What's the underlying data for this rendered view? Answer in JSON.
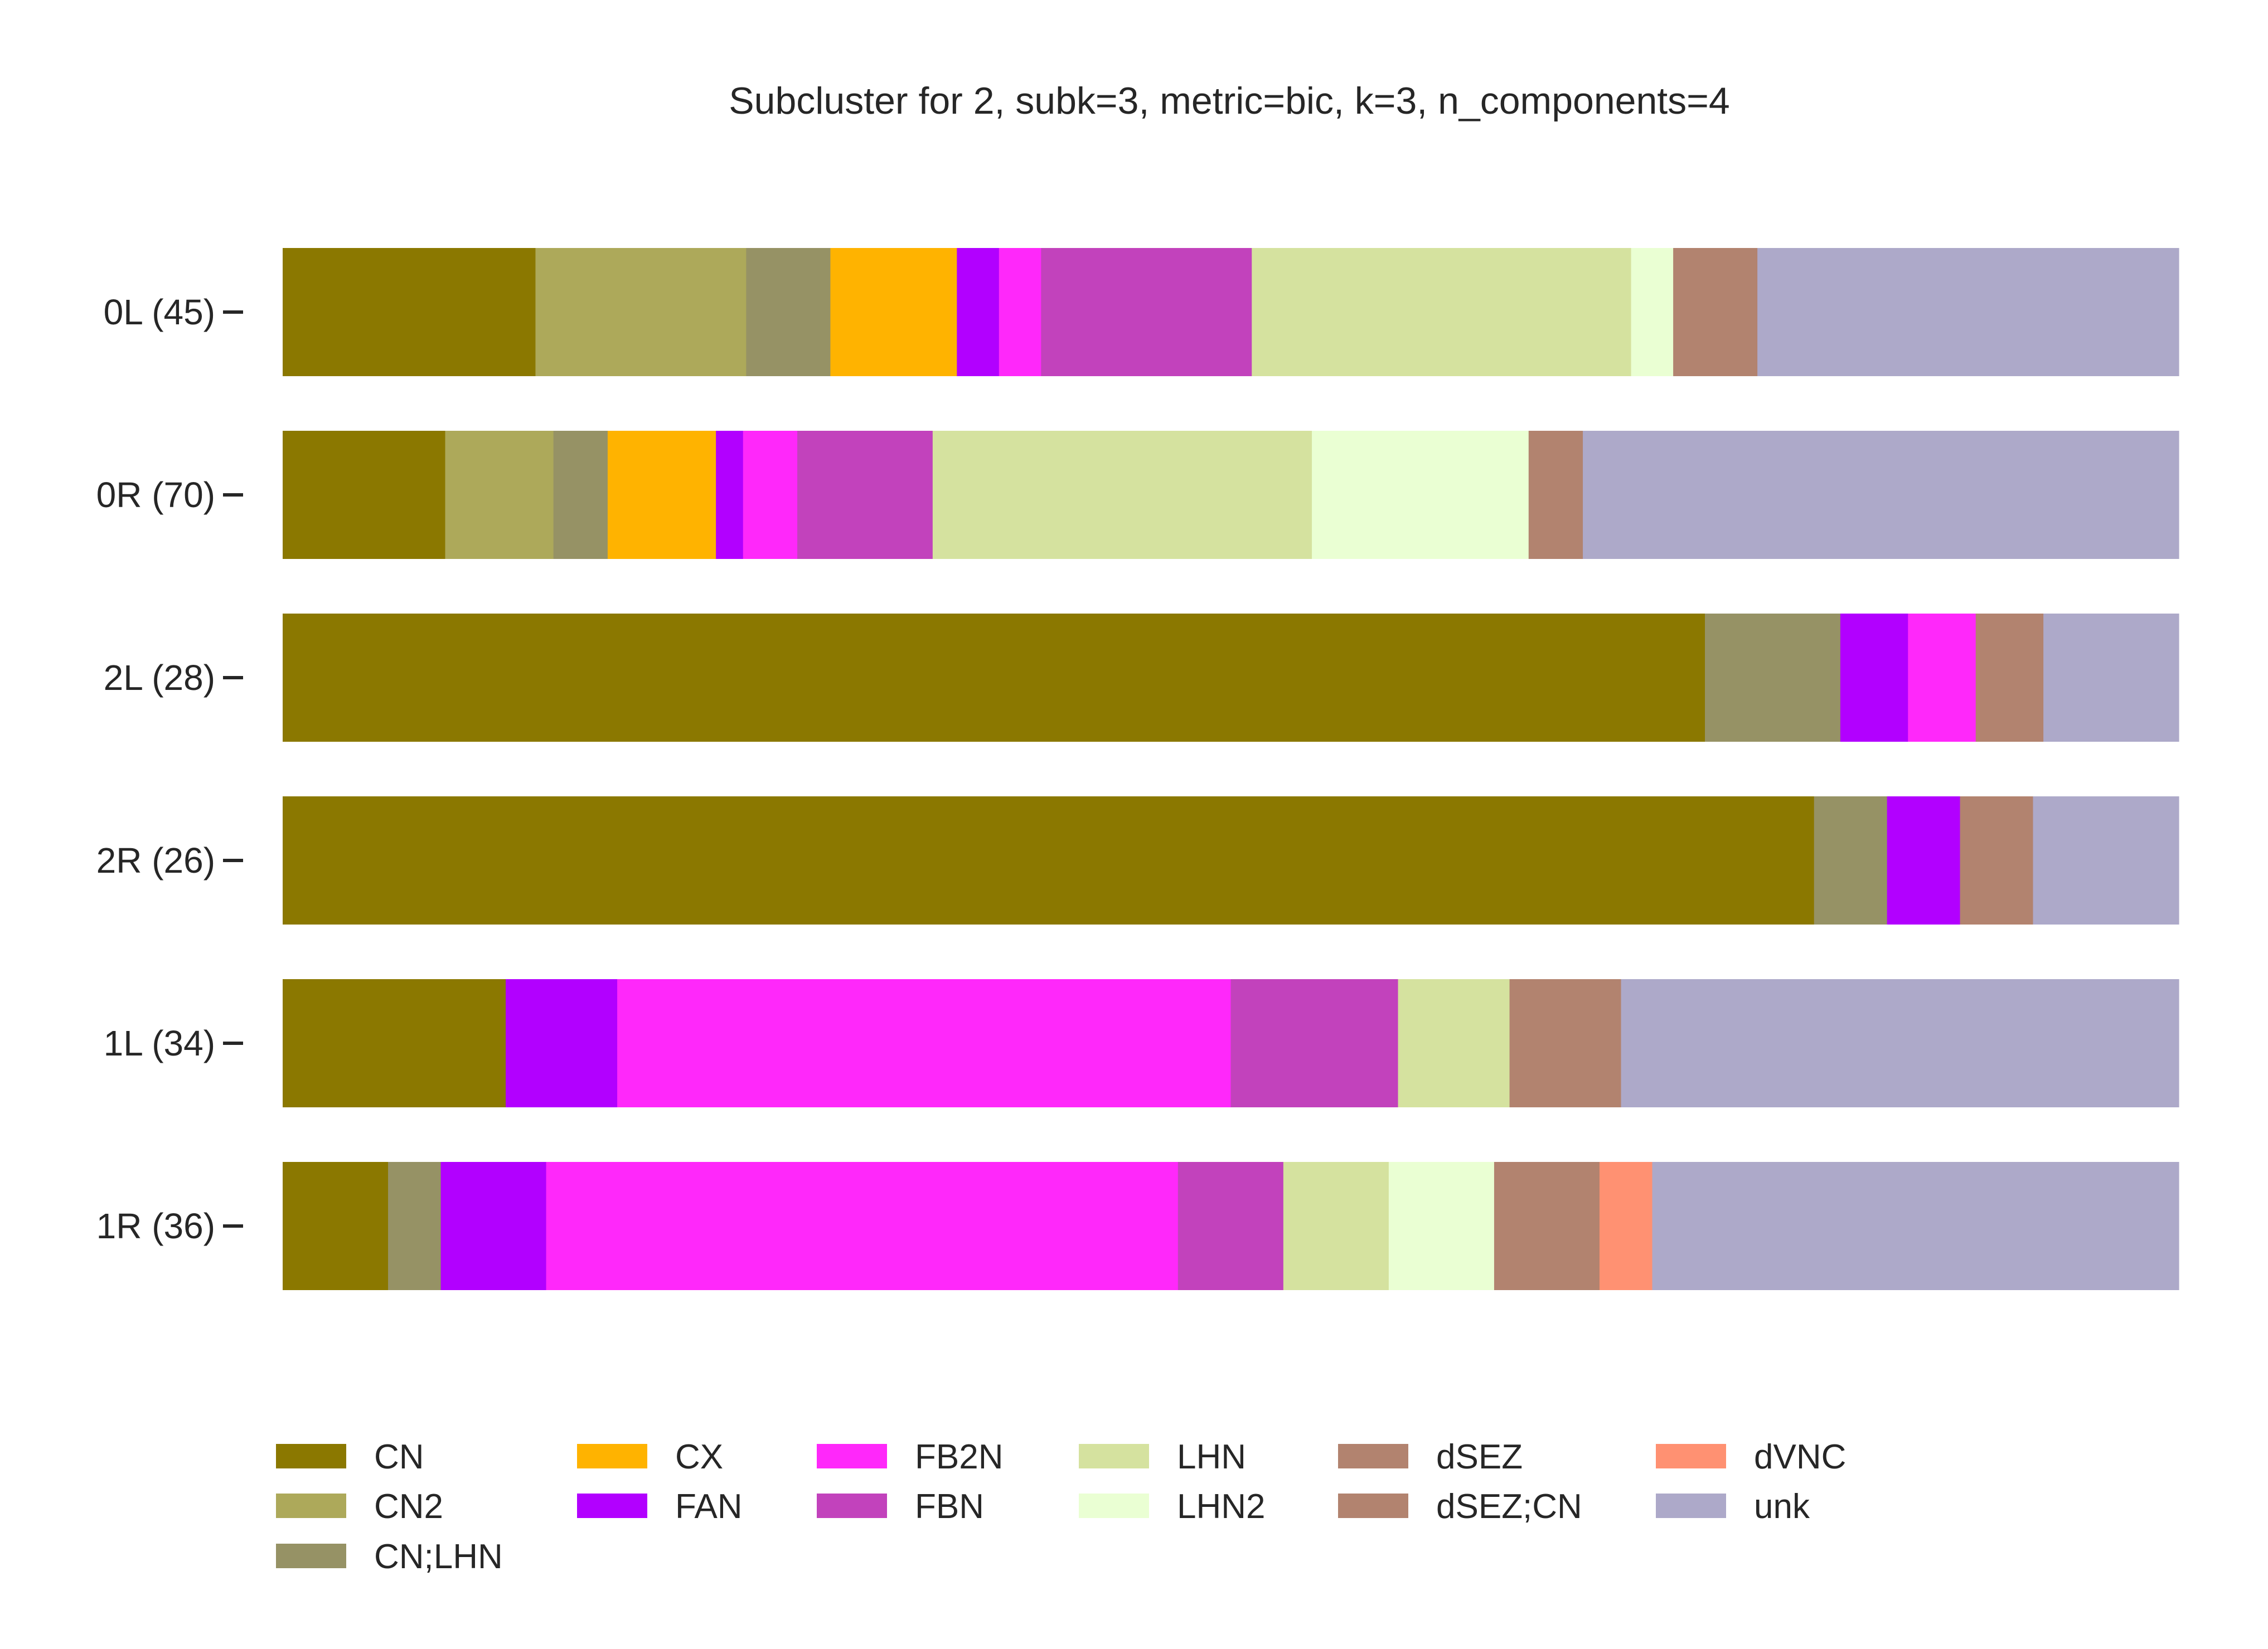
{
  "chart_data": {
    "type": "bar",
    "orientation": "horizontal",
    "stacked": true,
    "normalized": true,
    "title": "Subcluster for 2, subk=3, metric=bic, k=3, n_components=4",
    "xlabel": "",
    "ylabel": "",
    "xlim": [
      0,
      1
    ],
    "grid": false,
    "legend_position": "bottom",
    "categories": [
      "0L (45)",
      "0R (70)",
      "2L (28)",
      "2R (26)",
      "1L (34)",
      "1R (36)"
    ],
    "series": [
      {
        "name": "CN",
        "color": "#8B7800",
        "values": [
          0.1333,
          0.0857,
          0.75,
          0.8077,
          0.1176,
          0.0556
        ]
      },
      {
        "name": "CN2",
        "color": "#ADA95A",
        "values": [
          0.1111,
          0.0571,
          0,
          0,
          0,
          0
        ]
      },
      {
        "name": "CN;LHN",
        "color": "#969265",
        "values": [
          0.0444,
          0.0286,
          0.0714,
          0.0385,
          0,
          0.0278
        ]
      },
      {
        "name": "CX",
        "color": "#FFB300",
        "values": [
          0.0667,
          0.0571,
          0,
          0,
          0,
          0
        ]
      },
      {
        "name": "FAN",
        "color": "#B200FF",
        "values": [
          0.0222,
          0.0143,
          0.0357,
          0.0385,
          0.0588,
          0.0556
        ]
      },
      {
        "name": "FB2N",
        "color": "#FF28FA",
        "values": [
          0.0222,
          0.0286,
          0.0357,
          0,
          0.3235,
          0.3333
        ]
      },
      {
        "name": "FBN",
        "color": "#C242BC",
        "values": [
          0.1111,
          0.0714,
          0,
          0,
          0.0882,
          0.0556
        ]
      },
      {
        "name": "LHN",
        "color": "#D5E29F",
        "values": [
          0.2,
          0.2,
          0,
          0,
          0.0588,
          0.0556
        ]
      },
      {
        "name": "LHN2",
        "color": "#EAFFD3",
        "values": [
          0.0222,
          0.1143,
          0,
          0,
          0,
          0.0556
        ]
      },
      {
        "name": "dSEZ",
        "color": "#B2836F",
        "values": [
          0.0444,
          0.0286,
          0.0357,
          0.0385,
          0.0588,
          0.0556
        ]
      },
      {
        "name": "dSEZ;CN",
        "color": "#B2836F",
        "values": [
          0,
          0,
          0,
          0,
          0,
          0
        ]
      },
      {
        "name": "dVNC",
        "color": "#FF9172",
        "values": [
          0,
          0,
          0,
          0,
          0,
          0.0278
        ]
      },
      {
        "name": "unk",
        "color": "#ADA9C9",
        "values": [
          0.2222,
          0.3143,
          0.0714,
          0.0769,
          0.2941,
          0.2778
        ]
      }
    ]
  }
}
